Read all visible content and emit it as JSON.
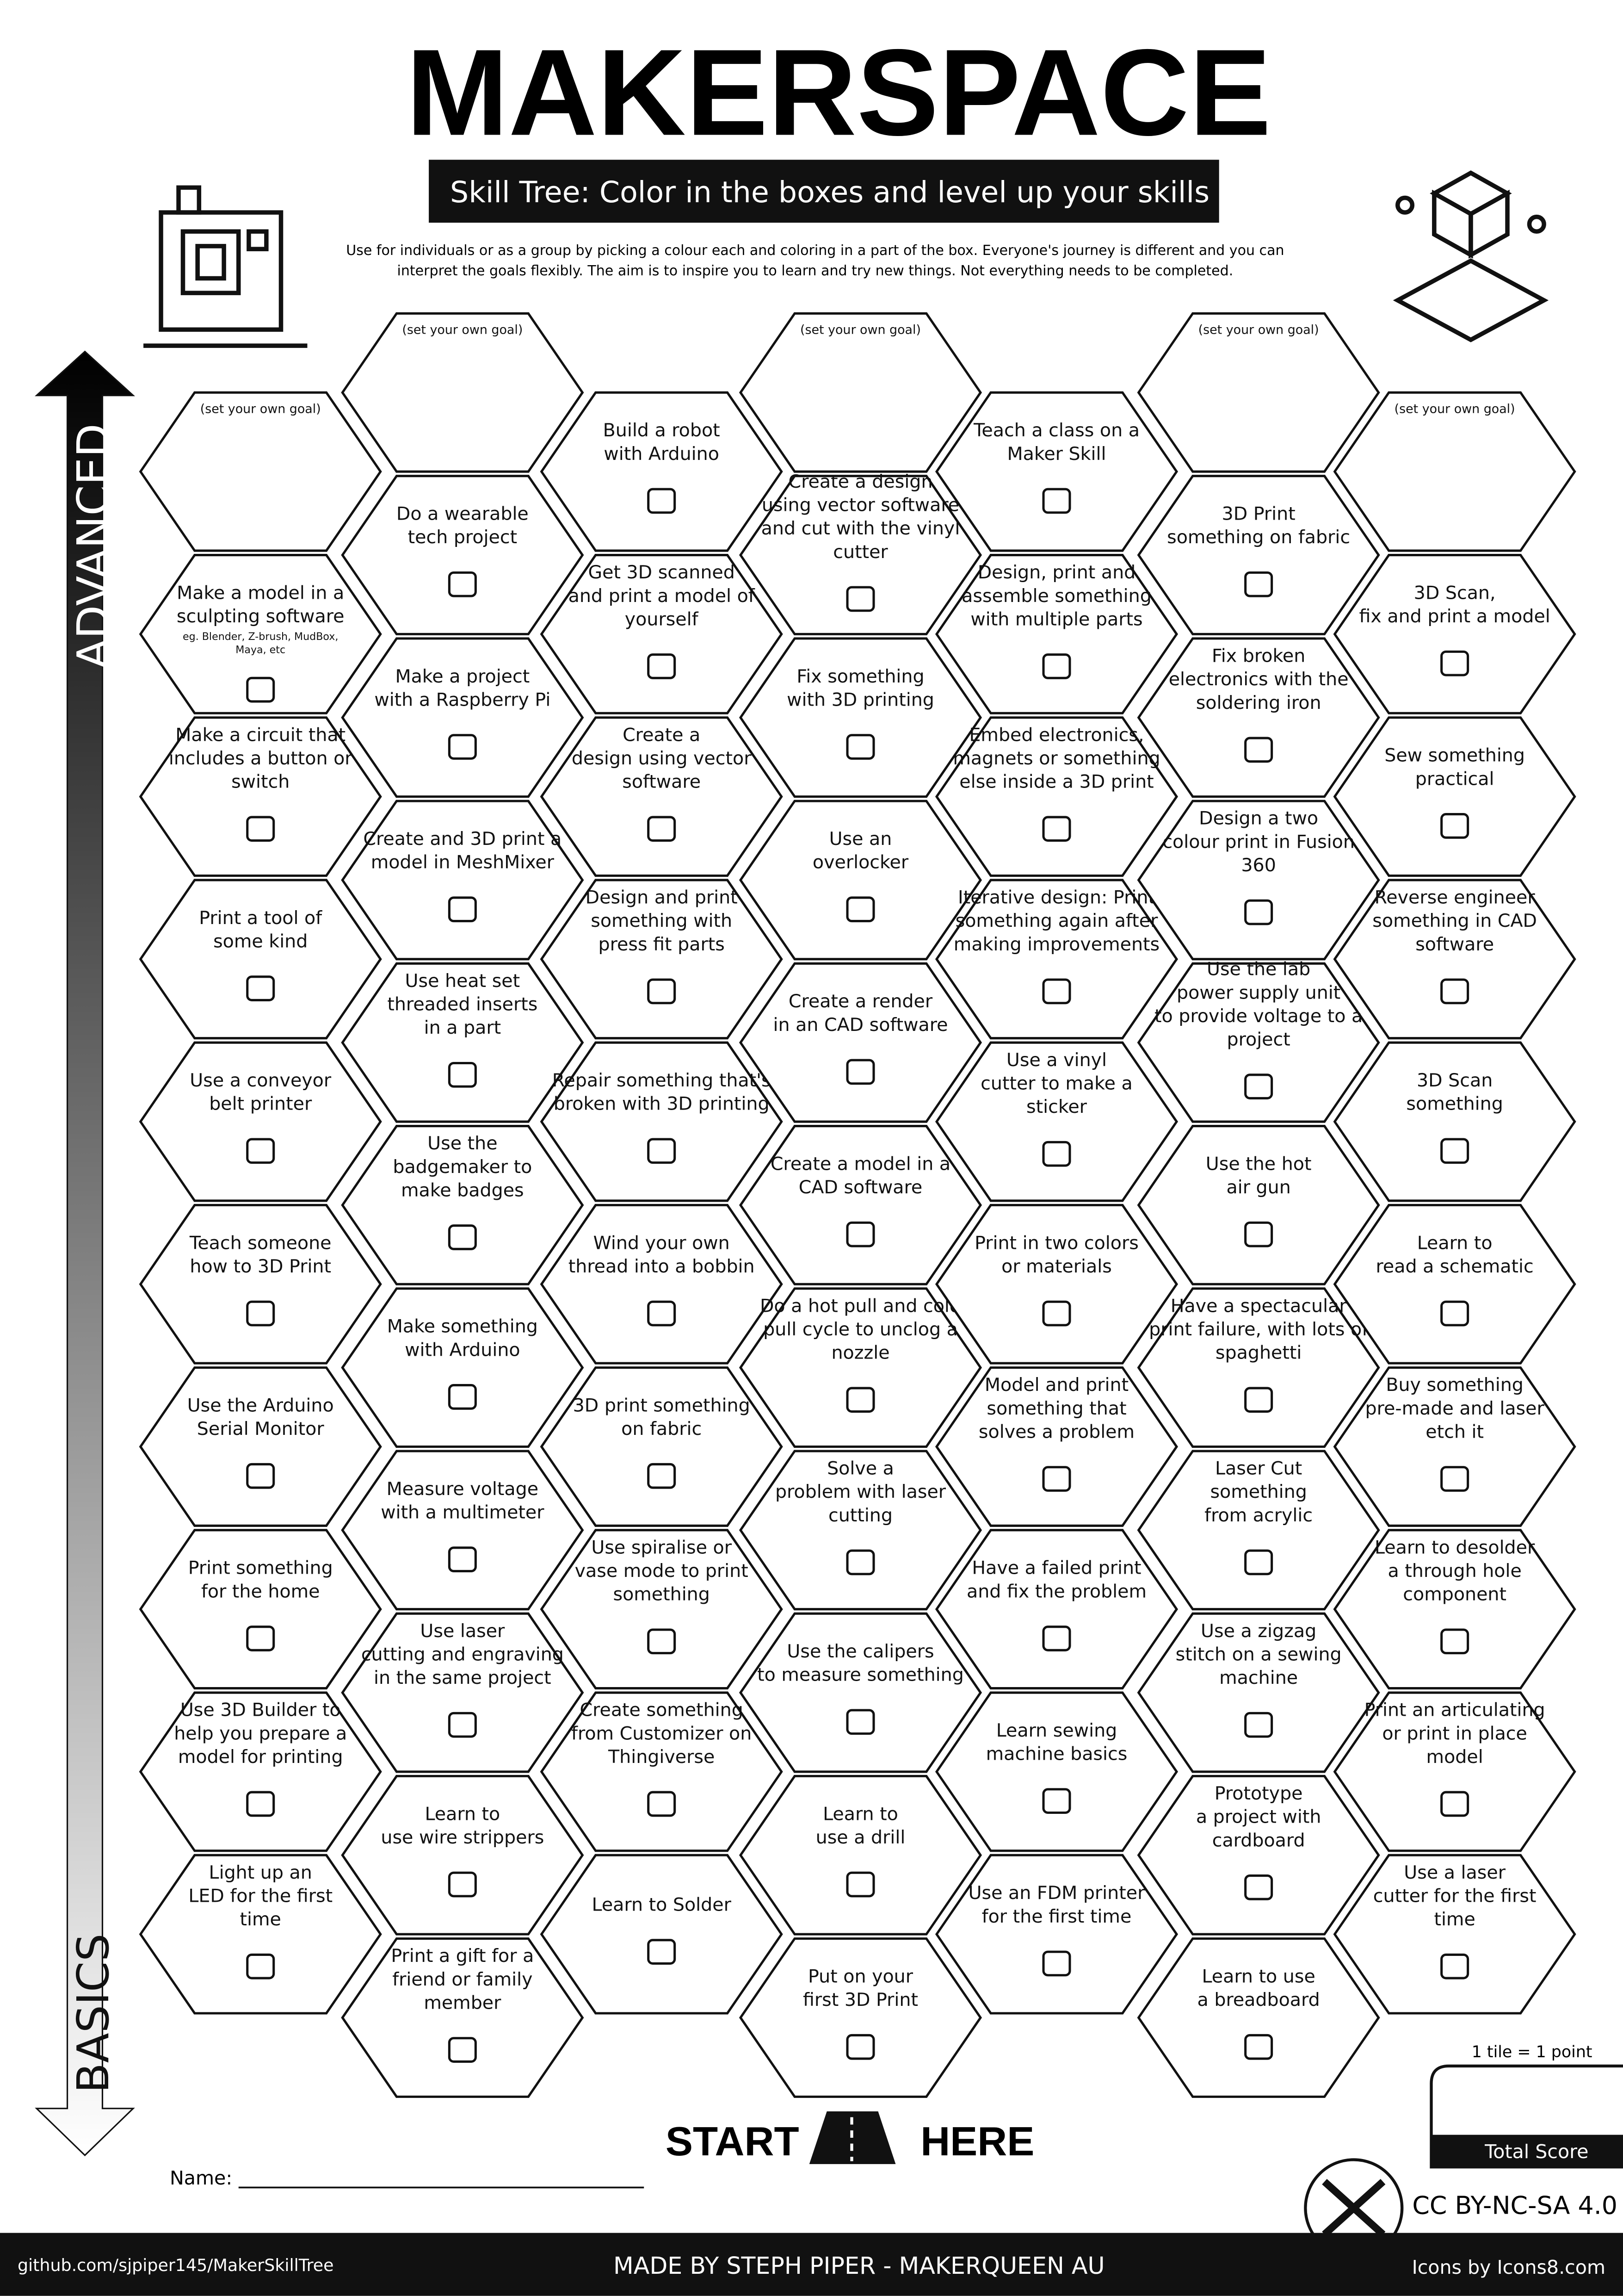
{
  "header": {
    "title": "MAKERSPACE",
    "subtitle": "Skill Tree:  Color in the boxes and level up your skills",
    "intro": [
      "Use for individuals or as a group by picking a colour each and coloring in a part of the box.  Everyone's journey is different and you can",
      "interpret the goals flexibly.  The aim is to inspire you to learn and try new things. Not everything needs to be completed."
    ]
  },
  "axis": {
    "top": "ADVANCED",
    "bottom": "BASICS"
  },
  "columns": [
    {
      "tiles": [
        {
          "goal": "(set your own goal)"
        },
        {
          "lines": [
            "Make a model in a",
            "sculpting software"
          ],
          "note": [
            "eg. Blender, Z-brush, MudBox,",
            "Maya, etc"
          ]
        },
        {
          "lines": [
            "Make a circuit that",
            "includes a button or",
            "switch"
          ]
        },
        {
          "lines": [
            "Print a tool of",
            "some kind"
          ]
        },
        {
          "lines": [
            "Use a conveyor",
            "belt printer"
          ]
        },
        {
          "lines": [
            "Teach someone",
            "how to 3D Print"
          ]
        },
        {
          "lines": [
            "Use the Arduino",
            "Serial Monitor"
          ]
        },
        {
          "lines": [
            "Print something",
            "for the home"
          ]
        },
        {
          "lines": [
            "Use 3D Builder to",
            "help you prepare a",
            "model for printing"
          ]
        },
        {
          "lines": [
            "Light up an",
            "LED for the first",
            "time"
          ]
        }
      ]
    },
    {
      "tiles": [
        {
          "goal": "(set your own goal)"
        },
        {
          "lines": [
            "Do a wearable",
            "tech project"
          ]
        },
        {
          "lines": [
            "Make a project",
            "with a Raspberry Pi"
          ]
        },
        {
          "lines": [
            "Create and 3D print a",
            "model in MeshMixer"
          ]
        },
        {
          "lines": [
            "Use heat set",
            "threaded inserts",
            "in a part"
          ]
        },
        {
          "lines": [
            "Use the",
            "badgemaker to",
            "make badges"
          ]
        },
        {
          "lines": [
            "Make something",
            "with Arduino"
          ]
        },
        {
          "lines": [
            "Measure voltage",
            "with a multimeter"
          ]
        },
        {
          "lines": [
            "Use laser",
            "cutting and engraving",
            "in the same project"
          ]
        },
        {
          "lines": [
            "Learn to",
            "use wire strippers"
          ]
        },
        {
          "lines": [
            "Print a gift for a",
            "friend or family",
            "member"
          ]
        }
      ]
    },
    {
      "tiles": [
        {
          "lines": [
            "Build a robot",
            "with Arduino"
          ]
        },
        {
          "lines": [
            "Get 3D scanned",
            "and print a model of",
            "yourself"
          ]
        },
        {
          "lines": [
            "Create a",
            "design  using vector",
            "software"
          ]
        },
        {
          "lines": [
            "Design and print",
            "something with",
            "press fit parts"
          ]
        },
        {
          "lines": [
            "Repair something that's",
            "broken with 3D printing"
          ]
        },
        {
          "lines": [
            "Wind your own",
            "thread into a bobbin"
          ]
        },
        {
          "lines": [
            "3D print something",
            "on fabric"
          ]
        },
        {
          "lines": [
            "Use spiralise or",
            "vase mode to print",
            "something"
          ]
        },
        {
          "lines": [
            "Create something",
            "from Customizer on",
            "Thingiverse"
          ]
        },
        {
          "lines": [
            "Learn to Solder"
          ]
        }
      ]
    },
    {
      "tiles": [
        {
          "goal": "(set your own goal)"
        },
        {
          "lines": [
            "Create a  design",
            "using vector software",
            "and cut with the vinyl",
            "cutter"
          ]
        },
        {
          "lines": [
            "Fix something",
            "with 3D printing"
          ]
        },
        {
          "lines": [
            "Use an",
            "overlocker"
          ]
        },
        {
          "lines": [
            "Create a render",
            "in an CAD software"
          ]
        },
        {
          "lines": [
            "Create a model in a",
            "CAD software"
          ]
        },
        {
          "lines": [
            "Do a hot pull and cold",
            "pull cycle to unclog a",
            "nozzle"
          ]
        },
        {
          "lines": [
            "Solve a",
            "problem with laser",
            "cutting"
          ]
        },
        {
          "lines": [
            "Use the calipers",
            "to measure something"
          ]
        },
        {
          "lines": [
            "Learn to",
            "use a drill"
          ]
        },
        {
          "lines": [
            "Put on your",
            "first 3D Print"
          ]
        }
      ]
    },
    {
      "tiles": [
        {
          "lines": [
            "Teach a class on a",
            "Maker Skill"
          ]
        },
        {
          "lines": [
            "Design, print and",
            "assemble something",
            "with multiple parts"
          ]
        },
        {
          "lines": [
            "Embed electronics,",
            "magnets or something",
            "else inside a 3D print"
          ]
        },
        {
          "lines": [
            "Iterative design: Print",
            "something again after",
            "making improvements"
          ]
        },
        {
          "lines": [
            "Use a vinyl",
            "cutter to make a",
            "sticker"
          ]
        },
        {
          "lines": [
            "Print in two colors",
            "or materials"
          ]
        },
        {
          "lines": [
            "Model and print",
            "something that",
            "solves a problem"
          ]
        },
        {
          "lines": [
            "Have a failed print",
            "and fix the problem"
          ]
        },
        {
          "lines": [
            "Learn sewing",
            "machine basics"
          ]
        },
        {
          "lines": [
            "Use an FDM printer",
            "for the first time"
          ]
        }
      ]
    },
    {
      "tiles": [
        {
          "goal": "(set your own goal)"
        },
        {
          "lines": [
            "3D Print",
            "something on fabric"
          ]
        },
        {
          "lines": [
            "Fix broken",
            "electronics with the",
            "soldering iron"
          ]
        },
        {
          "lines": [
            "Design a two",
            "colour print in Fusion",
            "360"
          ]
        },
        {
          "lines": [
            "Use the lab",
            "power supply unit",
            "to provide voltage to a",
            "project"
          ]
        },
        {
          "lines": [
            "Use the hot",
            "air gun"
          ]
        },
        {
          "lines": [
            "Have a spectacular",
            "print failure, with lots of",
            "spaghetti"
          ]
        },
        {
          "lines": [
            "Laser Cut",
            "something",
            "from acrylic"
          ]
        },
        {
          "lines": [
            "Use a zigzag",
            "stitch on a sewing",
            "machine"
          ]
        },
        {
          "lines": [
            "Prototype",
            "a project with",
            "cardboard"
          ]
        },
        {
          "lines": [
            "Learn to use",
            "a breadboard"
          ]
        }
      ]
    },
    {
      "tiles": [
        {
          "goal": "(set your own goal)"
        },
        {
          "lines": [
            "3D Scan,",
            "fix and print a model"
          ]
        },
        {
          "lines": [
            "Sew something",
            "practical"
          ]
        },
        {
          "lines": [
            "Reverse engineer",
            "something in CAD",
            "software"
          ]
        },
        {
          "lines": [
            "3D Scan",
            "something"
          ]
        },
        {
          "lines": [
            "Learn to",
            "read a schematic"
          ]
        },
        {
          "lines": [
            "Buy something",
            "pre-made and laser",
            "etch it"
          ]
        },
        {
          "lines": [
            "Learn to desolder",
            "a through hole",
            "component"
          ]
        },
        {
          "lines": [
            "Print an articulating",
            "or print in place",
            "model"
          ]
        },
        {
          "lines": [
            "Use a laser",
            "cutter for the first",
            "time"
          ]
        }
      ]
    }
  ],
  "start": {
    "left": "START",
    "right": "HERE"
  },
  "name_label": "Name:",
  "score": {
    "rule": "1 tile = 1 point",
    "label": "Total Score"
  },
  "license": "CC BY-NC-SA 4.0",
  "footer": {
    "left": "github.com/sjpiper145/MakerSkillTree",
    "center": "MADE BY STEPH PIPER  -  MAKERQUEEN AU",
    "right": "Icons by Icons8.com"
  }
}
